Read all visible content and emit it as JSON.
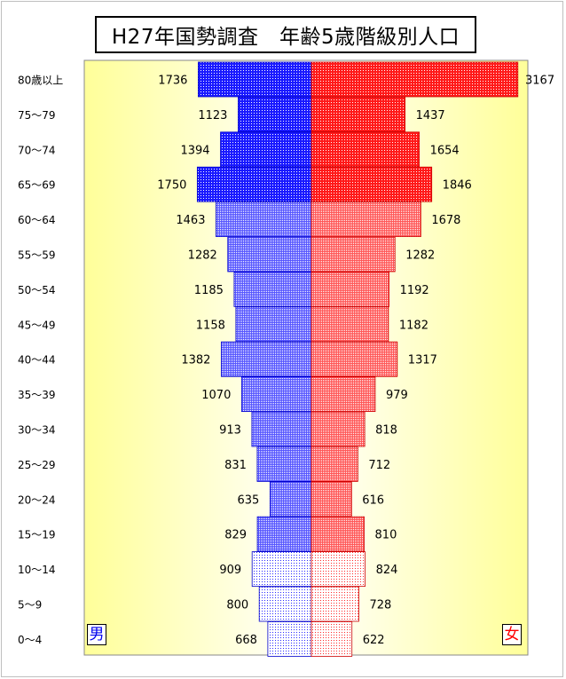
{
  "title": "H27年国勢調査　年齢5歳階級別人口",
  "legend": {
    "male": "男",
    "female": "女"
  },
  "chart_data": {
    "type": "bar",
    "subtype": "population-pyramid",
    "categories": [
      "80歳以上",
      "75～79",
      "70～74",
      "65～69",
      "60～64",
      "55～59",
      "50～54",
      "45～49",
      "40～44",
      "35～39",
      "30～34",
      "25～29",
      "20～24",
      "15～19",
      "10～14",
      "5～9",
      "0～4"
    ],
    "series": [
      {
        "name": "男",
        "values": [
          1736,
          1123,
          1394,
          1750,
          1463,
          1282,
          1185,
          1158,
          1382,
          1070,
          913,
          831,
          635,
          829,
          909,
          800,
          668
        ]
      },
      {
        "name": "女",
        "values": [
          3167,
          1437,
          1654,
          1846,
          1678,
          1282,
          1192,
          1182,
          1317,
          979,
          818,
          712,
          616,
          810,
          824,
          728,
          622
        ]
      }
    ],
    "xlim": [
      0,
      3500
    ],
    "colors": {
      "male": "#2a2aff",
      "female": "#ff2a2a",
      "background": "#ffff99"
    },
    "grid": false
  }
}
